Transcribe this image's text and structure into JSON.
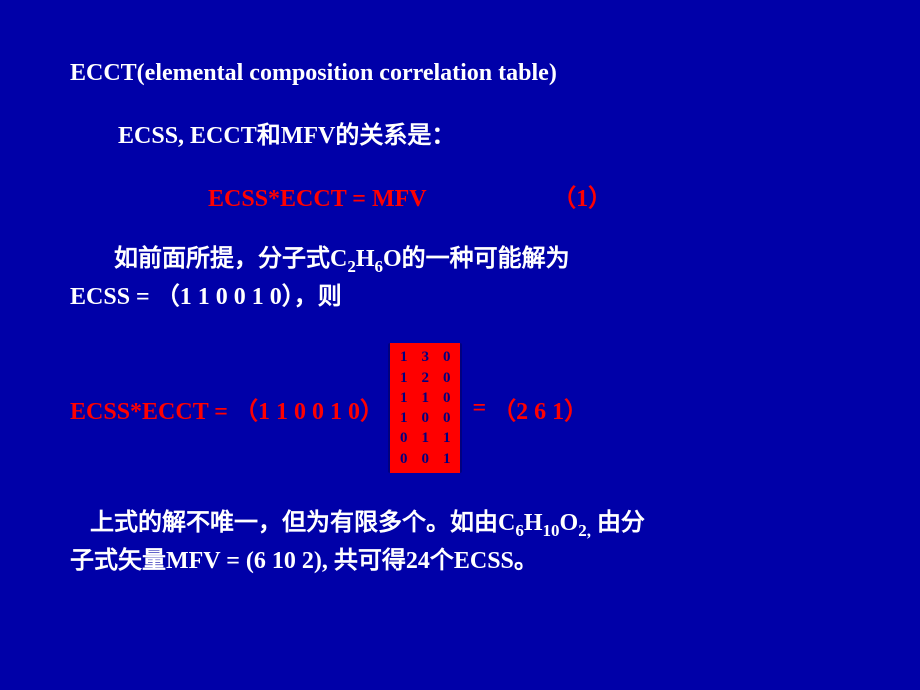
{
  "colors": {
    "background": "#0000a8",
    "text_white": "#ffffff",
    "text_red": "#ff0000",
    "matrix_bg": "#ff0000",
    "matrix_text": "#000080"
  },
  "typography": {
    "title_fontsize": 24,
    "body_fontsize": 24,
    "sub_fontsize": 17,
    "matrix_fontsize": 15,
    "font_weight": "bold"
  },
  "title": "ECCT(elemental composition correlation table)",
  "subtitle": "ECSS, ECCT和MFV的关系是：",
  "equation1": {
    "formula": "ECSS*ECCT = MFV",
    "number": "（1）"
  },
  "paragraph1": {
    "line1_pre": "如前面所提，分子式C",
    "line1_sub1": "2",
    "line1_mid1": "H",
    "line1_sub2": "6",
    "line1_mid2": "O的一种可能解为",
    "line2": "ECSS = （1 1 0 0 1 0），则"
  },
  "equation2": {
    "left": "ECSS*ECCT = （1 1 0 0 1 0）",
    "equals": " = ",
    "right": "（2  6  1）",
    "matrix": [
      [
        "1",
        "3",
        "0"
      ],
      [
        "1",
        "2",
        "0"
      ],
      [
        "1",
        "1",
        "0"
      ],
      [
        "1",
        "0",
        "0"
      ],
      [
        "0",
        "1",
        "1"
      ],
      [
        "0",
        "0",
        "1"
      ]
    ]
  },
  "paragraph2": {
    "line1_pre": "上式的解不唯一，但为有限多个。如由C",
    "line1_sub1": "6",
    "line1_mid1": "H",
    "line1_sub2": "10",
    "line1_mid2": "O",
    "line1_sub3": "2,",
    "line1_end": "  由分",
    "line2": "子式矢量MFV = (6  10  2), 共可得24个ECSS。"
  }
}
